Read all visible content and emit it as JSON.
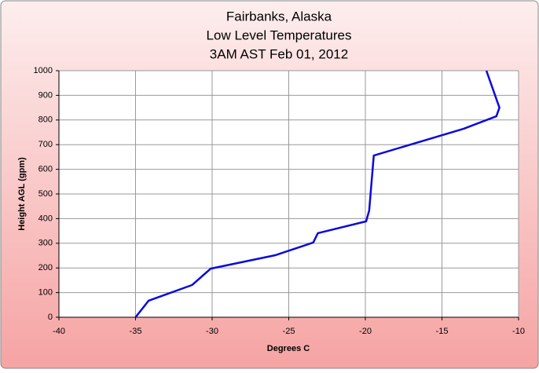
{
  "chart_data": {
    "type": "line",
    "title": [
      "Fairbanks, Alaska",
      "Low Level Temperatures",
      "3AM AST Feb 01, 2012"
    ],
    "xlabel": "Degrees C",
    "ylabel": "Height AGL (gpm)",
    "x": [
      -35.0,
      -34.15,
      -31.3,
      -30.1,
      -25.85,
      -23.4,
      -23.1,
      -19.95,
      -19.75,
      -19.45,
      -13.6,
      -11.45,
      -11.25,
      -12.1
    ],
    "values": [
      0,
      67,
      131,
      197,
      252,
      303,
      341,
      389,
      433,
      656,
      764,
      815,
      850,
      1000
    ],
    "color": "#0a0adc",
    "xlim": [
      -40,
      -10
    ],
    "xticks": [
      -40,
      -35,
      -30,
      -25,
      -20,
      -15,
      -10
    ],
    "ylim": [
      0,
      1000
    ],
    "yticks": [
      0,
      100,
      200,
      300,
      400,
      500,
      600,
      700,
      800,
      900,
      1000
    ],
    "grid": true
  }
}
